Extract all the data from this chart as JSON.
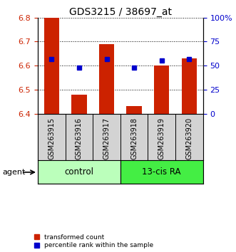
{
  "title": "GDS3215 / 38697_at",
  "samples": [
    "GSM263915",
    "GSM263916",
    "GSM263917",
    "GSM263918",
    "GSM263919",
    "GSM263920"
  ],
  "red_values": [
    6.8,
    6.48,
    6.69,
    6.43,
    6.6,
    6.63
  ],
  "blue_values_pct": [
    57,
    48,
    57,
    48,
    55,
    57
  ],
  "ylim_left": [
    6.4,
    6.8
  ],
  "ylim_right": [
    0,
    100
  ],
  "yticks_left": [
    6.4,
    6.5,
    6.6,
    6.7,
    6.8
  ],
  "yticks_right": [
    0,
    25,
    50,
    75,
    100
  ],
  "ytick_labels_right": [
    "0",
    "25",
    "50",
    "75",
    "100%"
  ],
  "groups": [
    {
      "label": "control",
      "color": "#aaffaa",
      "dark_color": "#44dd44"
    },
    {
      "label": "13-cis RA",
      "color": "#44dd44",
      "dark_color": "#44dd44"
    }
  ],
  "red_color": "#cc2200",
  "blue_color": "#0000cc",
  "bar_bottom": 6.4,
  "legend_red": "transformed count",
  "legend_blue": "percentile rank within the sample",
  "tick_color_left": "#cc2200",
  "tick_color_right": "#0000cc",
  "xlabel_area_color": "#d3d3d3",
  "bar_width": 0.55,
  "agent_label": "agent"
}
